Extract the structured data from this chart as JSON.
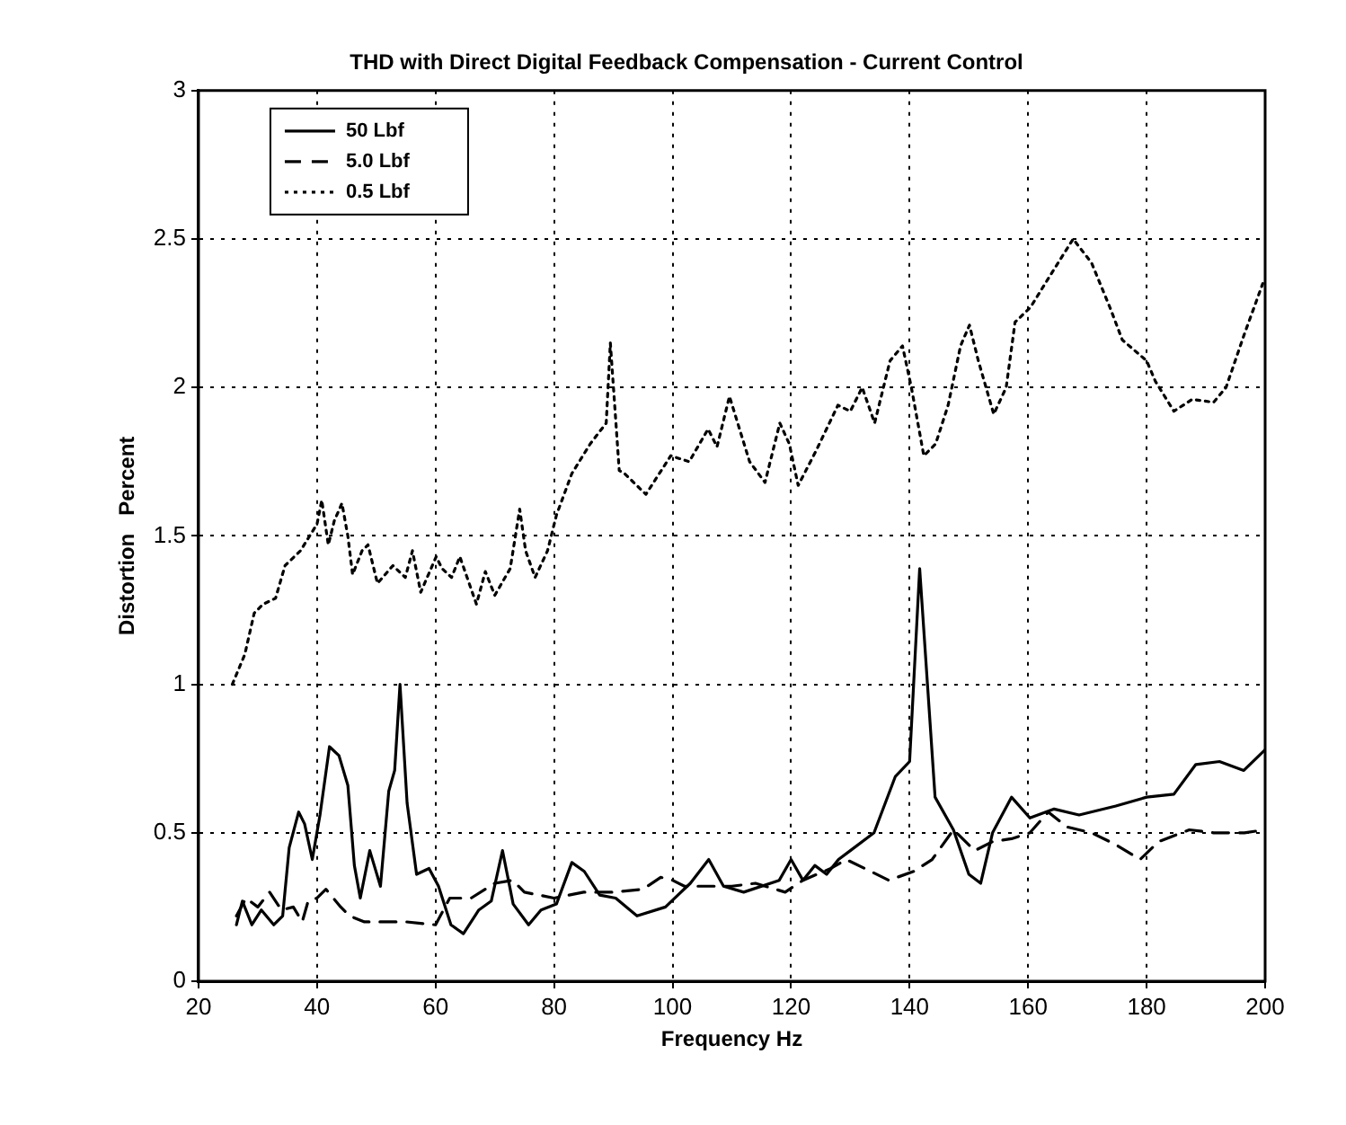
{
  "chart_data": {
    "type": "line",
    "title": "THD with Direct Digital Feedback Compensation - Current Control",
    "xlabel": "Frequency Hz",
    "ylabel": "Distortion   Percent",
    "xlim": [
      20,
      200
    ],
    "xticks": [
      20,
      40,
      60,
      80,
      100,
      120,
      140,
      160,
      180,
      200
    ],
    "ylim": [
      0,
      3
    ],
    "yticks": [
      0,
      0.5,
      1,
      1.5,
      2,
      2.5,
      3
    ],
    "grid": true,
    "legend": "top left",
    "marker": "none",
    "series": [
      {
        "name": "50 Lbf",
        "color": "#000000",
        "line_style": "solid",
        "x": [
          26.4,
          27.4,
          29,
          30.6,
          32.7,
          34.2,
          35.3,
          36.9,
          37.9,
          39.2,
          40.5,
          42.1,
          43.7,
          45.2,
          46.3,
          47.3,
          48.9,
          50.7,
          52.1,
          53.1,
          54,
          55.2,
          56.8,
          58.9,
          60.5,
          62.6,
          64.7,
          67.3,
          69.4,
          71.3,
          73.1,
          75.7,
          77.8,
          80.4,
          83,
          85.1,
          87.7,
          90.4,
          94,
          98.8,
          103,
          106.1,
          108.6,
          112,
          118,
          120,
          122,
          124,
          126,
          128,
          130,
          134,
          137.6,
          140,
          141.7,
          144.3,
          147.4,
          150,
          152,
          154,
          157.2,
          160.3,
          164.4,
          168.6,
          174.8,
          180,
          184.6,
          188.3,
          192.3,
          196.4,
          200
        ],
        "values": [
          0.19,
          0.27,
          0.19,
          0.24,
          0.19,
          0.22,
          0.45,
          0.57,
          0.53,
          0.41,
          0.56,
          0.79,
          0.76,
          0.66,
          0.39,
          0.28,
          0.44,
          0.32,
          0.64,
          0.71,
          1.0,
          0.6,
          0.36,
          0.38,
          0.32,
          0.19,
          0.16,
          0.24,
          0.27,
          0.44,
          0.26,
          0.19,
          0.24,
          0.26,
          0.4,
          0.37,
          0.29,
          0.28,
          0.22,
          0.25,
          0.33,
          0.41,
          0.32,
          0.3,
          0.34,
          0.41,
          0.34,
          0.39,
          0.36,
          0.41,
          0.44,
          0.5,
          0.69,
          0.74,
          1.39,
          0.62,
          0.51,
          0.36,
          0.33,
          0.5,
          0.62,
          0.55,
          0.58,
          0.56,
          0.59,
          0.62,
          0.63,
          0.73,
          0.74,
          0.71,
          0.78
        ]
      },
      {
        "name": "5.0 Lbf",
        "color": "#000000",
        "line_style": "dashed",
        "x": [
          26.4,
          28,
          30,
          32,
          34,
          36,
          37.5,
          38.5,
          40,
          41.5,
          44,
          45.5,
          48,
          55,
          60,
          62.4,
          66,
          70,
          73,
          75,
          80,
          85,
          90,
          95,
          98,
          100,
          102,
          110,
          114,
          119,
          122,
          126.7,
          129.3,
          132.4,
          136.5,
          140.7,
          143.8,
          147.4,
          151,
          154,
          157.2,
          160.3,
          163.4,
          166.5,
          170.7,
          174.8,
          178.9,
          182,
          187.2,
          191.3,
          196.5,
          200
        ],
        "values": [
          0.22,
          0.28,
          0.25,
          0.3,
          0.24,
          0.25,
          0.2,
          0.27,
          0.28,
          0.31,
          0.25,
          0.22,
          0.2,
          0.2,
          0.19,
          0.28,
          0.28,
          0.33,
          0.34,
          0.3,
          0.28,
          0.3,
          0.3,
          0.31,
          0.35,
          0.34,
          0.32,
          0.32,
          0.33,
          0.3,
          0.34,
          0.38,
          0.41,
          0.38,
          0.34,
          0.37,
          0.41,
          0.51,
          0.44,
          0.47,
          0.48,
          0.5,
          0.57,
          0.52,
          0.5,
          0.46,
          0.41,
          0.47,
          0.51,
          0.5,
          0.5,
          0.51
        ]
      },
      {
        "name": "0.5 Lbf",
        "color": "#000000",
        "line_style": "dotted",
        "x": [
          25.7,
          27.8,
          29.4,
          30.9,
          33,
          34.6,
          37.2,
          40,
          40.8,
          41.9,
          42.9,
          44.2,
          45.2,
          46,
          47.6,
          48.6,
          50.2,
          52.8,
          54.9,
          56.1,
          57.5,
          60.1,
          61.1,
          62.7,
          64.1,
          66.9,
          68.4,
          70,
          72.6,
          74.2,
          75.2,
          76.8,
          78.9,
          80.4,
          83,
          86.1,
          88.8,
          89.5,
          91,
          91.9,
          95.5,
          99.7,
          102.8,
          106,
          107.5,
          109.6,
          113,
          115.6,
          118.1,
          119.7,
          121.2,
          124.3,
          127.9,
          130,
          132,
          134.1,
          136.7,
          138.8,
          140.3,
          142.4,
          144.4,
          146.5,
          148.6,
          150.1,
          151.6,
          154.2,
          156.3,
          157.8,
          160.4,
          163.5,
          167.6,
          170.7,
          173.8,
          175.9,
          180,
          181.5,
          184.6,
          187.7,
          191.3,
          193.4,
          196.5,
          199.6
        ],
        "values": [
          1.0,
          1.1,
          1.24,
          1.27,
          1.29,
          1.4,
          1.45,
          1.54,
          1.62,
          1.47,
          1.55,
          1.61,
          1.5,
          1.37,
          1.45,
          1.47,
          1.34,
          1.4,
          1.36,
          1.45,
          1.31,
          1.43,
          1.39,
          1.36,
          1.43,
          1.27,
          1.38,
          1.3,
          1.39,
          1.59,
          1.45,
          1.36,
          1.45,
          1.57,
          1.71,
          1.81,
          1.88,
          2.15,
          1.72,
          1.71,
          1.64,
          1.77,
          1.75,
          1.86,
          1.8,
          1.97,
          1.75,
          1.68,
          1.88,
          1.81,
          1.67,
          1.79,
          1.94,
          1.92,
          2.0,
          1.88,
          2.09,
          2.14,
          2.0,
          1.77,
          1.81,
          1.94,
          2.14,
          2.21,
          2.09,
          1.91,
          2.0,
          2.22,
          2.27,
          2.37,
          2.5,
          2.42,
          2.27,
          2.16,
          2.09,
          2.02,
          1.92,
          1.96,
          1.95,
          2.0,
          2.18,
          2.35
        ]
      }
    ]
  }
}
